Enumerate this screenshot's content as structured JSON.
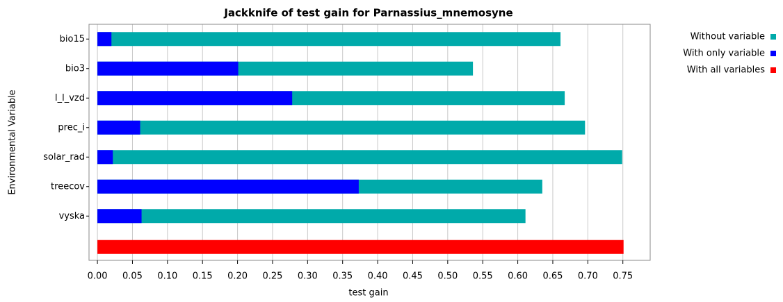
{
  "chart_data": {
    "type": "bar",
    "orientation": "horizontal",
    "title": "Jackknife of test gain for Parnassius_mnemosyne",
    "x_label": "test gain",
    "y_label": "Environmental Variable",
    "categories": [
      "bio15",
      "bio3",
      "l_l_vzd",
      "prec_i",
      "solar_rad",
      "treecov",
      "vyska",
      null
    ],
    "series": [
      {
        "name": "Without variable",
        "color": "#00aaaa",
        "values": [
          0.661,
          0.536,
          0.667,
          0.696,
          0.749,
          0.635,
          0.611,
          null
        ]
      },
      {
        "name": "With only variable",
        "color": "#0000ff",
        "values": [
          0.02,
          0.201,
          0.278,
          0.061,
          0.022,
          0.373,
          0.063,
          null
        ]
      },
      {
        "name": "With all variables",
        "color": "#ff0000",
        "values": [
          null,
          null,
          null,
          null,
          null,
          null,
          null,
          0.751
        ]
      }
    ],
    "xlim": [
      -0.012,
      0.789
    ],
    "xticks": [
      {
        "value": 0,
        "label": "0.00"
      },
      {
        "value": 0.05,
        "label": "0.05"
      },
      {
        "value": 0.1,
        "label": "0.10"
      },
      {
        "value": 0.15,
        "label": "0.15"
      },
      {
        "value": 0.2,
        "label": "0.20"
      },
      {
        "value": 0.25,
        "label": "0.25"
      },
      {
        "value": 0.3,
        "label": "0.30"
      },
      {
        "value": 0.35,
        "label": "0.35"
      },
      {
        "value": 0.4,
        "label": "0.40"
      },
      {
        "value": 0.45,
        "label": "0.45"
      },
      {
        "value": 0.5,
        "label": "0.50"
      },
      {
        "value": 0.55,
        "label": "0.55"
      },
      {
        "value": 0.6,
        "label": "0.60"
      },
      {
        "value": 0.65,
        "label": "0.65"
      },
      {
        "value": 0.7,
        "label": "0.70"
      },
      {
        "value": 0.75,
        "label": "0.75"
      }
    ],
    "grid": true,
    "legend": "right"
  }
}
